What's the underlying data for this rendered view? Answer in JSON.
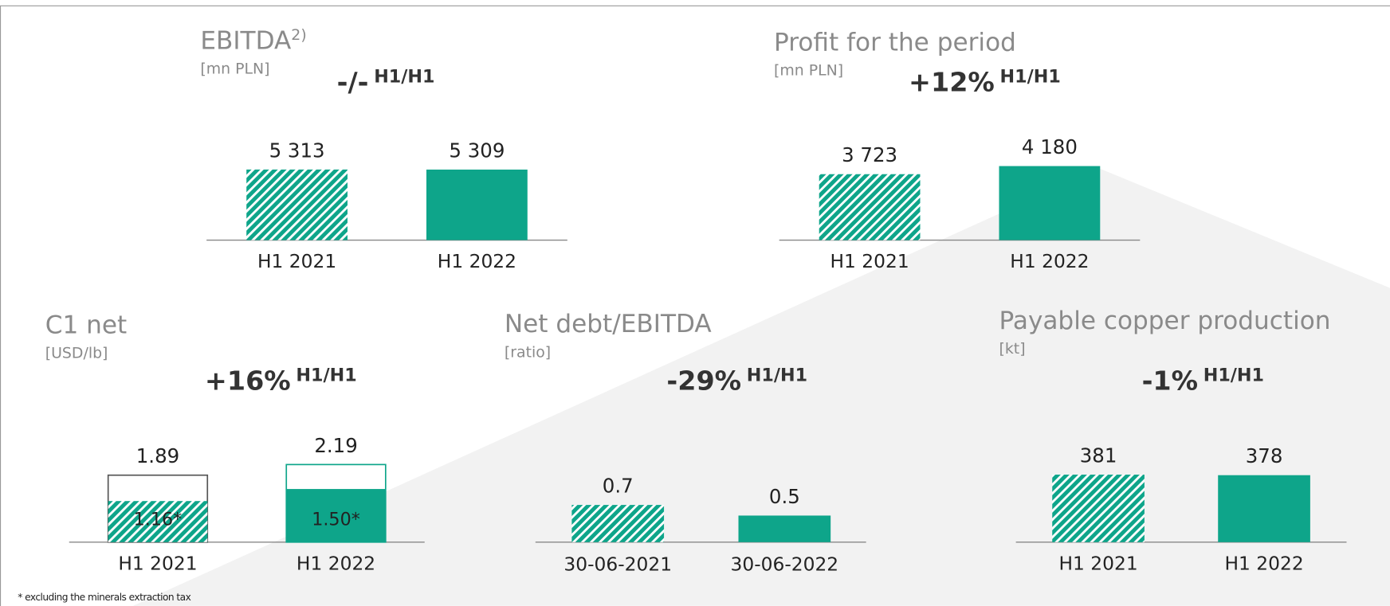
{
  "chart_data": [
    {
      "type": "bar",
      "title": "EBITDA",
      "title_note": "2)",
      "subtitle": "[mn PLN]",
      "change": "-/-",
      "change_period": "H1/H1",
      "categories": [
        "H1 2021",
        "H1 2022"
      ],
      "values": [
        5313,
        5309
      ],
      "value_labels": [
        "5 313",
        "5 309"
      ],
      "color": "#0ea58a",
      "patterns": [
        "hatched",
        "solid"
      ],
      "ylim": [
        0,
        8000
      ]
    },
    {
      "type": "bar",
      "title": "Profit for the period",
      "subtitle": "[mn PLN]",
      "change": "+12%",
      "change_period": "H1/H1",
      "categories": [
        "H1 2021",
        "H1 2022"
      ],
      "values": [
        3723,
        4180
      ],
      "value_labels": [
        "3 723",
        "4 180"
      ],
      "color": "#0ea58a",
      "patterns": [
        "hatched",
        "solid"
      ],
      "ylim": [
        0,
        6000
      ]
    },
    {
      "type": "overlap_bar",
      "title": "C1 net",
      "subtitle": "[USD/lb]",
      "change": "+16%",
      "change_period": "H1/H1",
      "categories": [
        "H1 2021",
        "H1 2022"
      ],
      "values": [
        1.89,
        2.19
      ],
      "inner_values": [
        1.16,
        1.5
      ],
      "inner_value_labels": [
        "1.16*",
        "1.50*"
      ],
      "color": "#0ea58a",
      "patterns": [
        "hatched",
        "solid"
      ],
      "ylim": [
        0,
        3
      ]
    },
    {
      "type": "bar",
      "title": "Net debt/EBITDA",
      "subtitle": "[ratio]",
      "change": "-29%",
      "change_period": "H1/H1",
      "categories": [
        "30-06-2021",
        "30-06-2022"
      ],
      "values": [
        0.7,
        0.5
      ],
      "color": "#0ea58a",
      "patterns": [
        "hatched",
        "solid"
      ],
      "ylim": [
        0,
        2
      ]
    },
    {
      "type": "bar",
      "title": "Payable copper production",
      "subtitle": "[kt]",
      "change": "-1%",
      "change_period": "H1/H1",
      "categories": [
        "H1 2021",
        "H1 2022"
      ],
      "values": [
        381,
        378
      ],
      "color": "#0ea58a",
      "patterns": [
        "hatched",
        "solid"
      ],
      "ylim": [
        0,
        600
      ]
    }
  ],
  "footnote": "* excluding the minerals extraction tax"
}
